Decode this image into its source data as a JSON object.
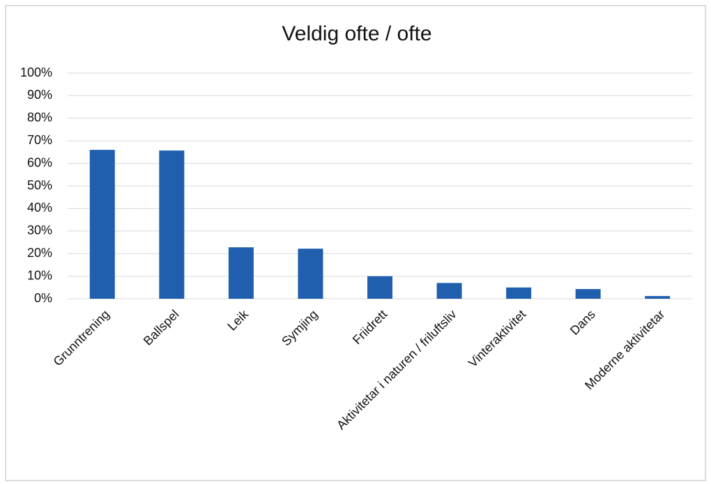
{
  "chart_data": {
    "type": "bar",
    "title": "Veldig ofte / ofte",
    "categories": [
      "Grunntrening",
      "Ballspel",
      "Leik",
      "Symjing",
      "Friidrett",
      "Aktivitetar i naturen / friluftsliv",
      "Vinteraktivitet",
      "Dans",
      "Moderne aktivitetar"
    ],
    "values": [
      66,
      65.7,
      22.8,
      22.2,
      10,
      7,
      5,
      4.3,
      1.2
    ],
    "color": "#1f5fad",
    "ylim": [
      0,
      100
    ],
    "yticks": [
      {
        "value": 0,
        "label": "0%"
      },
      {
        "value": 10,
        "label": "10%"
      },
      {
        "value": 20,
        "label": "20%"
      },
      {
        "value": 30,
        "label": "30%"
      },
      {
        "value": 40,
        "label": "40%"
      },
      {
        "value": 50,
        "label": "50%"
      },
      {
        "value": 60,
        "label": "60%"
      },
      {
        "value": 70,
        "label": "70%"
      },
      {
        "value": 80,
        "label": "80%"
      },
      {
        "value": 90,
        "label": "90%"
      },
      {
        "value": 100,
        "label": "100%"
      }
    ],
    "grid": true
  }
}
